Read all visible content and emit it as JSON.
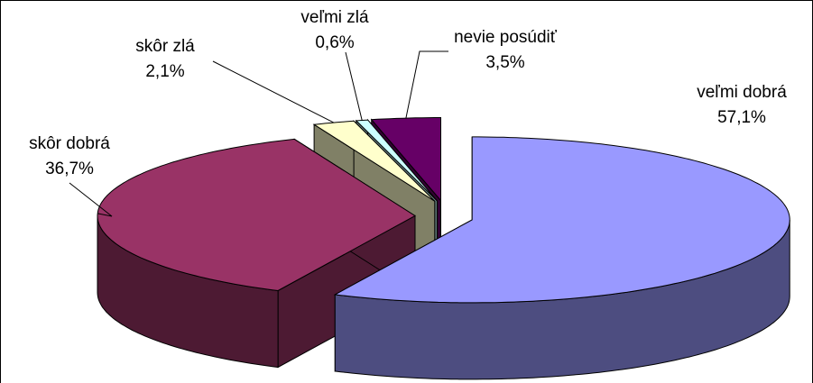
{
  "chart_data": {
    "type": "pie3d",
    "categories": [
      "veľmi dobrá",
      "skôr dobrá",
      "skôr zlá",
      "veľmi zlá",
      "nevie posúdiť"
    ],
    "values": [
      57.1,
      36.7,
      2.1,
      0.6,
      3.5
    ],
    "value_labels": [
      "57,1%",
      "36,7%",
      "2,1%",
      "0,6%",
      "3,5%"
    ],
    "colors": [
      "#9999ff",
      "#993366",
      "#ffffcc",
      "#ccffff",
      "#660066"
    ]
  }
}
